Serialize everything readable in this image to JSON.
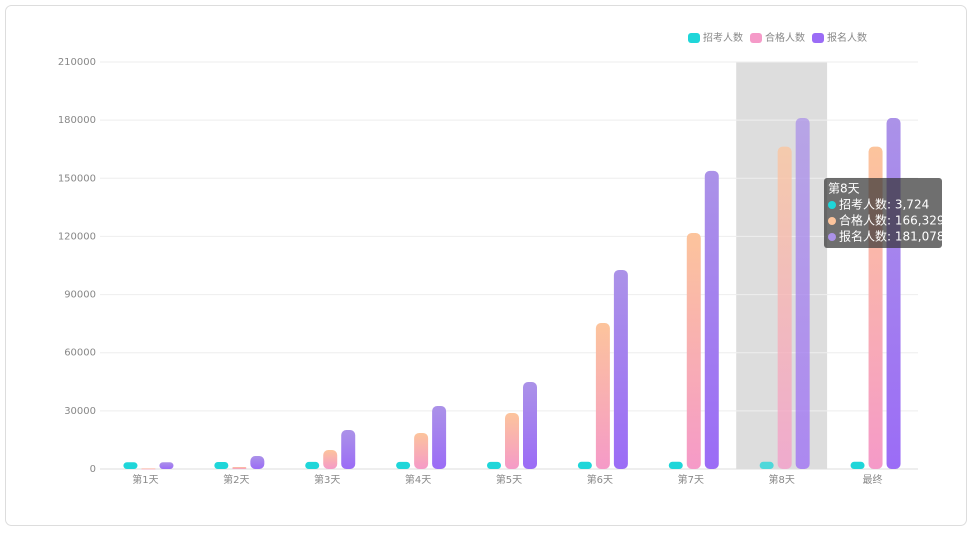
{
  "chart_data": {
    "type": "bar",
    "categories": [
      "第1天",
      "第2天",
      "第3天",
      "第4天",
      "第5天",
      "第6天",
      "第7天",
      "第8天",
      "最终"
    ],
    "series": [
      {
        "name": "招考人数",
        "color": "#1fd6d9",
        "color_top": "#1fd6d9",
        "values": [
          3500,
          3600,
          3650,
          3680,
          3700,
          3710,
          3720,
          3724,
          3724
        ]
      },
      {
        "name": "合格人数",
        "color": "#f59ac8",
        "color_top": "#fcc49c",
        "values": [
          300,
          1000,
          9800,
          18600,
          28900,
          75300,
          121800,
          166329,
          166329
        ]
      },
      {
        "name": "报名人数",
        "color": "#9b6cf6",
        "color_top": "#ab92e8",
        "values": [
          3500,
          6700,
          20100,
          32500,
          44900,
          102700,
          153800,
          181078,
          181078
        ]
      }
    ],
    "ylim": [
      0,
      210000
    ],
    "yticks": [
      0,
      30000,
      60000,
      90000,
      120000,
      150000,
      180000,
      210000
    ],
    "grid": true,
    "legend": "top-right",
    "tooltip": {
      "title": "第8天",
      "lines": [
        "招考人数: 3,724",
        "合格人数: 166,329",
        "报名人数: 181,078"
      ]
    }
  }
}
